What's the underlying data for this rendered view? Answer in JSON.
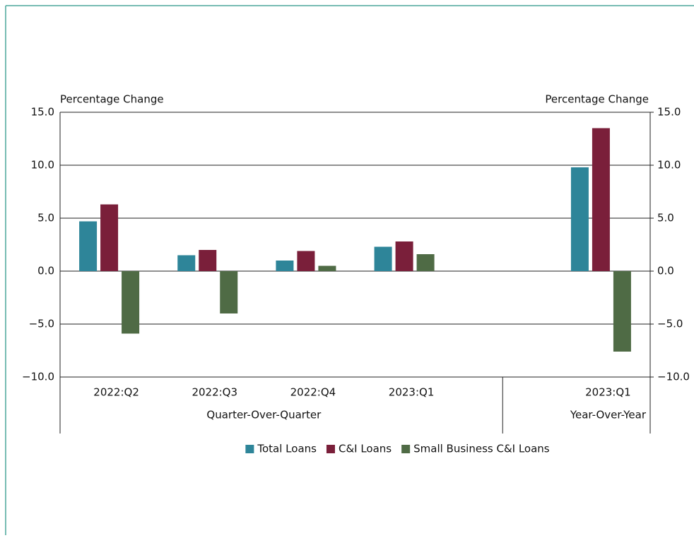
{
  "chart_data": {
    "type": "bar",
    "y_label": "Percentage Change",
    "y2_label": "Percentage Change",
    "categories": [
      "2022:Q2",
      "2022:Q3",
      "2022:Q4",
      "2023:Q1",
      null,
      "2023:Q1"
    ],
    "x_groups": [
      {
        "label": "Quarter-Over-Quarter",
        "from": 0,
        "to": 3
      },
      {
        "label": "Year-Over-Year",
        "from": 5,
        "to": 5
      }
    ],
    "series": [
      {
        "name": "Total Loans",
        "color": "#2e8599",
        "values": [
          4.7,
          1.5,
          1.0,
          2.3,
          null,
          9.8
        ]
      },
      {
        "name": "C&I Loans",
        "color": "#7a1f3a",
        "values": [
          6.3,
          2.0,
          1.9,
          2.8,
          null,
          13.5
        ]
      },
      {
        "name": "Small Business C&I Loans",
        "color": "#4f6b45",
        "values": [
          -5.9,
          -4.0,
          0.5,
          1.6,
          null,
          -7.6
        ]
      }
    ],
    "ylim": [
      -10,
      15
    ],
    "yticks": [
      {
        "value": -10,
        "label": "−10.0"
      },
      {
        "value": -5,
        "label": "−5.0"
      },
      {
        "value": 0,
        "label": "0.0"
      },
      {
        "value": 5,
        "label": "5.0"
      },
      {
        "value": 10,
        "label": "10.0"
      },
      {
        "value": 15,
        "label": "15.0"
      }
    ],
    "y2lim": [
      -10,
      15
    ],
    "y2ticks": [
      {
        "value": -10,
        "label": "−10.0"
      },
      {
        "value": -5,
        "label": "−5.0"
      },
      {
        "value": 0,
        "label": "0.0"
      },
      {
        "value": 5,
        "label": "5.0"
      },
      {
        "value": 10,
        "label": "10.0"
      },
      {
        "value": 15,
        "label": "15.0"
      }
    ],
    "grid": true,
    "legend": "bottom"
  }
}
